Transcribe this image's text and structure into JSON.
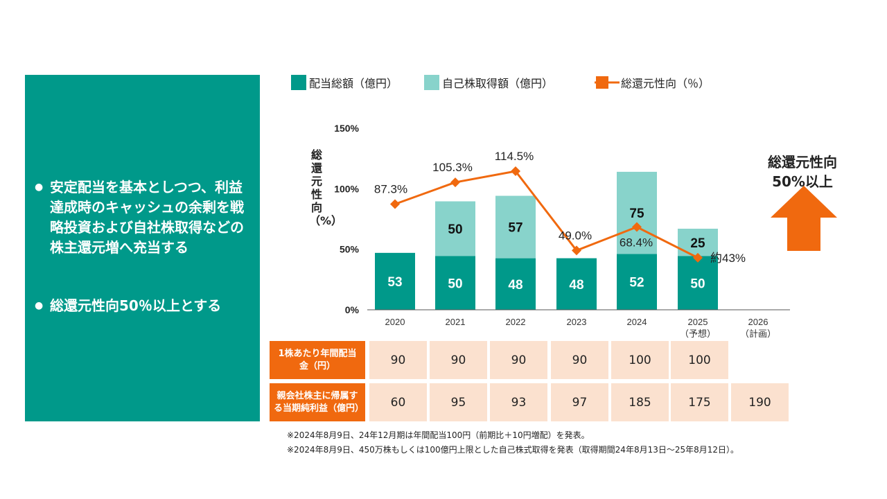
{
  "left_panel": {
    "bullets": [
      "安定配当を基本としつつ、利益達成時のキャッシュの余剰を戦略投資および自社株取得などの株主還元増へ充当する",
      "総還元性向50％以上とする"
    ]
  },
  "legend": {
    "dividend": "配当総額（億円）",
    "buyback": "自己株取得額（億円）",
    "payout": "総還元性向（％）"
  },
  "colors": {
    "dividend": "#00998a",
    "buyback": "#88d3cb",
    "payout": "#f0690f",
    "panel": "#00998a",
    "table_header": "#f0690f",
    "table_value": "#fbe1cf"
  },
  "y_axis_label": "総還元性向（%）",
  "callout": {
    "line1": "総還元性向",
    "line2": "50%以上"
  },
  "chart_data": {
    "type": "bar",
    "stacked": true,
    "categories": [
      "2020",
      "2021",
      "2022",
      "2023",
      "2024",
      "2025",
      "2026"
    ],
    "category_sublabels": [
      "",
      "",
      "",
      "",
      "",
      "（予想）",
      "（計画）"
    ],
    "series": [
      {
        "name": "配当総額（億円）",
        "values": [
          53,
          50,
          48,
          48,
          52,
          50,
          null
        ]
      },
      {
        "name": "自己株取得額（億円）",
        "values": [
          null,
          50,
          57,
          null,
          75,
          25,
          null
        ]
      }
    ],
    "line_series": {
      "name": "総還元性向（％）",
      "values": [
        87.3,
        105.3,
        114.5,
        49.0,
        68.4,
        43,
        null
      ],
      "labels": [
        "87.3%",
        "105.3%",
        "114.5%",
        "49.0%",
        "68.4%",
        "約43%",
        ""
      ]
    },
    "y_ticks": [
      "0%",
      "50%",
      "100%",
      "150%"
    ],
    "ylim": [
      0,
      150
    ],
    "ylabel": "総還元性向（%）",
    "title": ""
  },
  "table": {
    "rows": [
      {
        "header": "1株あたり年間配当金（円）",
        "values": [
          "90",
          "90",
          "90",
          "90",
          "100",
          "100",
          ""
        ]
      },
      {
        "header": "親会社株主に帰属する当期純利益（億円）",
        "values": [
          "60",
          "95",
          "93",
          "97",
          "185",
          "175",
          "190"
        ]
      }
    ]
  },
  "notes": [
    "※2024年8月9日、24年12月期は年間配当100円（前期比＋10円増配）を発表。",
    "※2024年8月9日、450万株もしくは100億円上限とした自己株式取得を発表（取得期間24年8月13日～25年8月12日）。"
  ]
}
